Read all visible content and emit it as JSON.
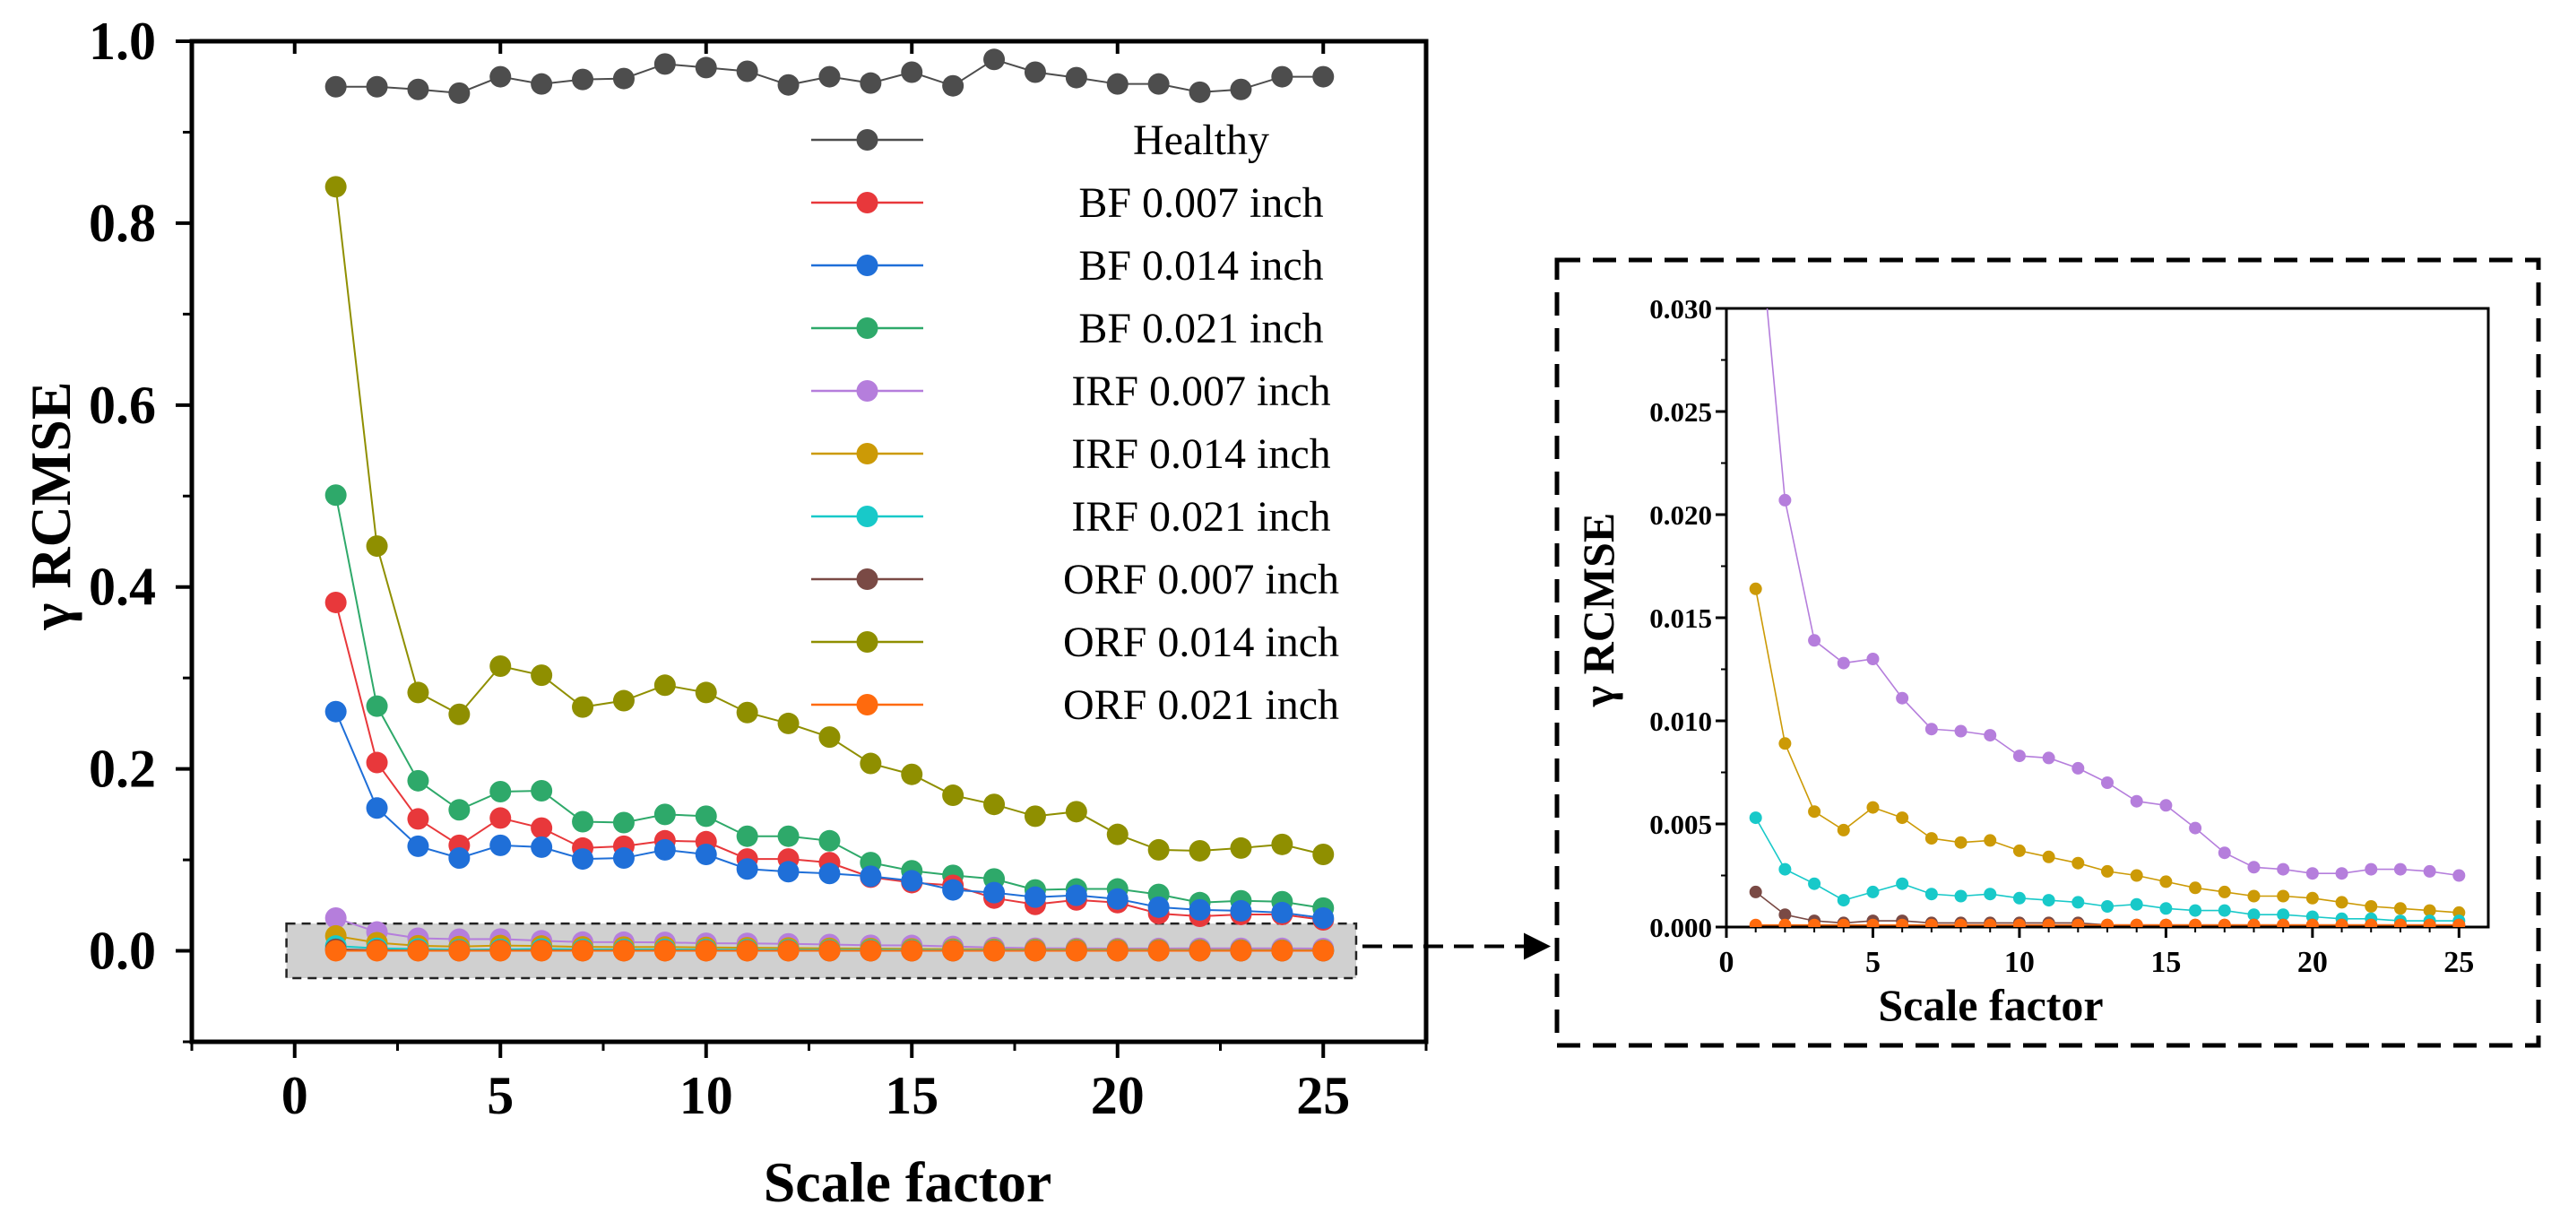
{
  "colors": {
    "Healthy": "#4d4d4d",
    "BF 0.007 inch": "#e8383b",
    "BF 0.014 inch": "#1f6fd8",
    "BF 0.021 inch": "#2ea96a",
    "IRF 0.007 inch": "#b57edc",
    "IRF 0.014 inch": "#cc9a06",
    "IRF 0.021 inch": "#18c9c9",
    "ORF 0.007 inch": "#7a4a45",
    "ORF 0.014 inch": "#8f8f00",
    "ORF 0.021 inch": "#ff6a0d",
    "highlight_box": "#c8c8c8"
  },
  "chart_data": [
    {
      "id": "main",
      "type": "line",
      "title": "",
      "xlabel": "Scale factor",
      "ylabel": "γ RCMSE",
      "xlim": [
        -2.5,
        27.5
      ],
      "ylim": [
        -0.1,
        1.0
      ],
      "xticks": [
        0,
        5,
        10,
        15,
        20,
        25
      ],
      "yticks": [
        0.0,
        0.2,
        0.4,
        0.6,
        0.8,
        1.0
      ],
      "xtick_labels": [
        "0",
        "5",
        "10",
        "15",
        "20",
        "25"
      ],
      "ytick_labels": [
        "0.0",
        "0.2",
        "0.4",
        "0.6",
        "0.8",
        "1.0"
      ],
      "legend": "top-right",
      "highlight_region": {
        "x": [
          -0.2,
          25.8
        ],
        "y": [
          -0.03,
          0.03
        ]
      },
      "series": [
        {
          "name": "Healthy",
          "x": [
            1,
            2,
            3,
            4,
            5,
            6,
            7,
            8,
            9,
            10,
            11,
            12,
            13,
            14,
            15,
            16,
            17,
            18,
            19,
            20,
            21,
            22,
            23,
            24,
            25
          ],
          "values": [
            0.95,
            0.95,
            0.947,
            0.943,
            0.961,
            0.953,
            0.958,
            0.959,
            0.975,
            0.971,
            0.967,
            0.952,
            0.961,
            0.954,
            0.966,
            0.951,
            0.98,
            0.966,
            0.96,
            0.953,
            0.953,
            0.944,
            0.947,
            0.961,
            0.961
          ]
        },
        {
          "name": "ORF 0.014 inch",
          "x": [
            1,
            2,
            3,
            4,
            5,
            6,
            7,
            8,
            9,
            10,
            11,
            12,
            13,
            14,
            15,
            16,
            17,
            18,
            19,
            20,
            21,
            22,
            23,
            24,
            25
          ],
          "values": [
            0.84,
            0.445,
            0.284,
            0.26,
            0.313,
            0.303,
            0.268,
            0.275,
            0.292,
            0.284,
            0.262,
            0.25,
            0.235,
            0.206,
            0.194,
            0.171,
            0.161,
            0.148,
            0.153,
            0.128,
            0.111,
            0.11,
            0.113,
            0.117,
            0.106
          ]
        },
        {
          "name": "BF 0.021 inch",
          "x": [
            1,
            2,
            3,
            4,
            5,
            6,
            7,
            8,
            9,
            10,
            11,
            12,
            13,
            14,
            15,
            16,
            17,
            18,
            19,
            20,
            21,
            22,
            23,
            24,
            25
          ],
          "values": [
            0.501,
            0.269,
            0.187,
            0.155,
            0.175,
            0.176,
            0.142,
            0.141,
            0.15,
            0.148,
            0.126,
            0.126,
            0.121,
            0.097,
            0.088,
            0.083,
            0.079,
            0.067,
            0.068,
            0.068,
            0.062,
            0.053,
            0.055,
            0.054,
            0.047
          ]
        },
        {
          "name": "BF 0.007 inch",
          "x": [
            1,
            2,
            3,
            4,
            5,
            6,
            7,
            8,
            9,
            10,
            11,
            12,
            13,
            14,
            15,
            16,
            17,
            18,
            19,
            20,
            21,
            22,
            23,
            24,
            25
          ],
          "values": [
            0.383,
            0.207,
            0.145,
            0.116,
            0.146,
            0.135,
            0.113,
            0.115,
            0.121,
            0.12,
            0.101,
            0.101,
            0.097,
            0.081,
            0.075,
            0.072,
            0.058,
            0.051,
            0.056,
            0.053,
            0.041,
            0.038,
            0.04,
            0.04,
            0.034
          ]
        },
        {
          "name": "BF 0.014 inch",
          "x": [
            1,
            2,
            3,
            4,
            5,
            6,
            7,
            8,
            9,
            10,
            11,
            12,
            13,
            14,
            15,
            16,
            17,
            18,
            19,
            20,
            21,
            22,
            23,
            24,
            25
          ],
          "values": [
            0.263,
            0.157,
            0.115,
            0.102,
            0.116,
            0.114,
            0.101,
            0.102,
            0.111,
            0.106,
            0.09,
            0.087,
            0.085,
            0.082,
            0.077,
            0.067,
            0.064,
            0.059,
            0.061,
            0.057,
            0.048,
            0.045,
            0.044,
            0.042,
            0.036
          ]
        },
        {
          "name": "IRF 0.007 inch",
          "x": [
            1,
            2,
            3,
            4,
            5,
            6,
            7,
            8,
            9,
            10,
            11,
            12,
            13,
            14,
            15,
            16,
            17,
            18,
            19,
            20,
            21,
            22,
            23,
            24,
            25
          ],
          "values": [
            0.036,
            0.0207,
            0.0139,
            0.0128,
            0.013,
            0.0111,
            0.0096,
            0.0095,
            0.0093,
            0.0083,
            0.0082,
            0.0077,
            0.007,
            0.0061,
            0.0059,
            0.0048,
            0.0036,
            0.0029,
            0.0028,
            0.0026,
            0.0026,
            0.0028,
            0.0028,
            0.0027,
            0.0025
          ]
        },
        {
          "name": "IRF 0.014 inch",
          "x": [
            1,
            2,
            3,
            4,
            5,
            6,
            7,
            8,
            9,
            10,
            11,
            12,
            13,
            14,
            15,
            16,
            17,
            18,
            19,
            20,
            21,
            22,
            23,
            24,
            25
          ],
          "values": [
            0.0164,
            0.0089,
            0.0056,
            0.0047,
            0.0058,
            0.0053,
            0.0043,
            0.0041,
            0.0042,
            0.0037,
            0.0034,
            0.0031,
            0.0027,
            0.0025,
            0.0022,
            0.0019,
            0.0017,
            0.0015,
            0.0015,
            0.0014,
            0.0012,
            0.001,
            0.0009,
            0.0008,
            0.0007
          ]
        },
        {
          "name": "IRF 0.021 inch",
          "x": [
            1,
            2,
            3,
            4,
            5,
            6,
            7,
            8,
            9,
            10,
            11,
            12,
            13,
            14,
            15,
            16,
            17,
            18,
            19,
            20,
            21,
            22,
            23,
            24,
            25
          ],
          "values": [
            0.0053,
            0.0028,
            0.0021,
            0.0013,
            0.0017,
            0.0021,
            0.0016,
            0.0015,
            0.0016,
            0.0014,
            0.0013,
            0.0012,
            0.001,
            0.0011,
            0.0009,
            0.0008,
            0.0008,
            0.0006,
            0.0006,
            0.0005,
            0.0004,
            0.0004,
            0.0003,
            0.0003,
            0.0003
          ]
        },
        {
          "name": "ORF 0.007 inch",
          "x": [
            1,
            2,
            3,
            4,
            5,
            6,
            7,
            8,
            9,
            10,
            11,
            12,
            13,
            14,
            15,
            16,
            17,
            18,
            19,
            20,
            21,
            22,
            23,
            24,
            25
          ],
          "values": [
            0.0017,
            0.0006,
            0.0003,
            0.0002,
            0.0003,
            0.0003,
            0.0002,
            0.0002,
            0.0002,
            0.0002,
            0.0002,
            0.0002,
            0.0001,
            0.0001,
            0.0001,
            0.0001,
            0.0001,
            0.0001,
            0.0001,
            0.0001,
            0.0001,
            0.0001,
            0.0001,
            0.0001,
            0.0001
          ]
        },
        {
          "name": "ORF 0.021 inch",
          "x": [
            1,
            2,
            3,
            4,
            5,
            6,
            7,
            8,
            9,
            10,
            11,
            12,
            13,
            14,
            15,
            16,
            17,
            18,
            19,
            20,
            21,
            22,
            23,
            24,
            25
          ],
          "values": [
            0.0001,
            0.0001,
            0.0001,
            0.0001,
            0.0001,
            0.0001,
            0.0001,
            0.0001,
            0.0001,
            0.0001,
            0.0001,
            0.0001,
            0.0001,
            0.0001,
            0.0001,
            0.0001,
            0.0001,
            0.0001,
            0.0001,
            0.0001,
            0.0001,
            0.0001,
            0.0001,
            0.0001,
            0.0001
          ]
        }
      ],
      "legend_order": [
        "Healthy",
        "BF 0.007 inch",
        "BF 0.014 inch",
        "BF 0.021 inch",
        "IRF 0.007 inch",
        "IRF 0.014 inch",
        "IRF 0.021 inch",
        "ORF 0.007 inch",
        "ORF 0.014 inch",
        "ORF 0.021 inch"
      ]
    },
    {
      "id": "inset",
      "type": "line",
      "title": "",
      "xlabel": "Scale factor",
      "ylabel": "γ RCMSE",
      "xlim": [
        0,
        26
      ],
      "ylim": [
        0.0,
        0.03
      ],
      "xticks": [
        0,
        5,
        10,
        15,
        20,
        25
      ],
      "yticks": [
        0.0,
        0.005,
        0.01,
        0.015,
        0.02,
        0.025,
        0.03
      ],
      "xtick_labels": [
        "0",
        "5",
        "10",
        "15",
        "20",
        "25"
      ],
      "ytick_labels": [
        "0.000",
        "0.005",
        "0.010",
        "0.015",
        "0.020",
        "0.025",
        "0.030"
      ],
      "series_from": "main"
    }
  ]
}
